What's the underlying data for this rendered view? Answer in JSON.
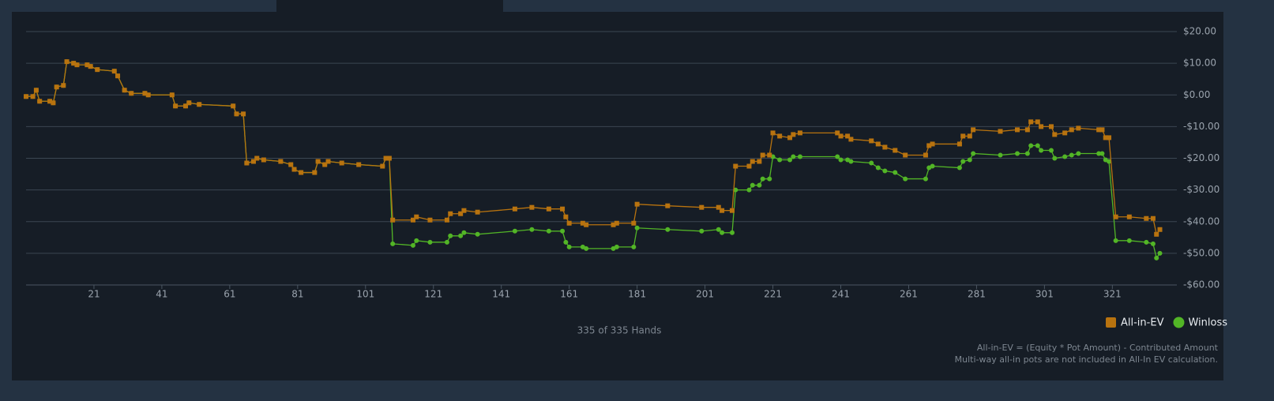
{
  "chart_data": {
    "type": "line",
    "x": [
      1,
      3,
      4,
      5,
      8,
      9,
      10,
      12,
      13,
      15,
      16,
      19,
      20,
      22,
      27,
      28,
      30,
      32,
      36,
      37,
      44,
      45,
      48,
      49,
      52,
      62,
      63,
      65,
      66,
      68,
      69,
      71,
      76,
      79,
      80,
      82,
      86,
      87,
      89,
      90,
      94,
      99,
      106,
      107,
      108,
      109,
      115,
      116,
      120,
      125,
      126,
      129,
      130,
      134,
      145,
      150,
      155,
      159,
      160,
      161,
      165,
      166,
      174,
      175,
      180,
      181,
      190,
      200,
      205,
      206,
      209,
      210,
      214,
      215,
      217,
      218,
      220,
      221,
      223,
      226,
      227,
      229,
      240,
      241,
      243,
      244,
      250,
      252,
      254,
      257,
      260,
      266,
      267,
      268,
      276,
      277,
      279,
      280,
      288,
      293,
      296,
      297,
      299,
      300,
      303,
      304,
      307,
      309,
      311,
      317,
      318,
      319,
      320,
      322,
      326,
      331,
      333,
      334,
      335
    ],
    "series": [
      {
        "name": "All-in-EV",
        "color": "#b8730f",
        "marker": "square",
        "values": [
          -0.5,
          -0.5,
          1.5,
          -2,
          -2,
          -2.5,
          2.5,
          3,
          10.5,
          10,
          9.5,
          9.5,
          9,
          8,
          7.5,
          6,
          1.5,
          0.5,
          0.5,
          0,
          0,
          -3.5,
          -3.5,
          -2.5,
          -3,
          -3.5,
          -6,
          -6,
          -21.5,
          -21,
          -20,
          -20.5,
          -21,
          -22,
          -23.5,
          -24.5,
          -24.5,
          -21,
          -22,
          -21,
          -21.5,
          -22,
          -22.5,
          -20,
          -20,
          -39.5,
          -39.5,
          -38.5,
          -39.5,
          -39.5,
          -37.5,
          -37.5,
          -36.5,
          -37,
          -36,
          -35.5,
          -36,
          -36,
          -38.5,
          -40.5,
          -40.5,
          -41,
          -41,
          -40.5,
          -40.5,
          -34.5,
          -35,
          -35.5,
          -35.5,
          -36.5,
          -36.5,
          -22.5,
          -22.5,
          -21,
          -21,
          -19,
          -19,
          -12,
          -13,
          -13.5,
          -12.5,
          -12,
          -12,
          -13,
          -13,
          -14,
          -14.5,
          -15.5,
          -16.5,
          -17.5,
          -19,
          -19,
          -16,
          -15.5,
          -15.5,
          -13,
          -13,
          -11,
          -11.5,
          -11,
          -11,
          -8.5,
          -8.5,
          -10,
          -10,
          -12.5,
          -12,
          -11,
          -10.5,
          -11,
          -11,
          -13.5,
          -13.5,
          -38.5,
          -38.5,
          -39,
          -39,
          -44,
          -42.5
        ]
      },
      {
        "name": "Winloss",
        "color": "#52b526",
        "marker": "circle",
        "values": [
          -0.5,
          -0.5,
          1.5,
          -2,
          -2,
          -2.5,
          2.5,
          3,
          10.5,
          10,
          9.5,
          9.5,
          9,
          8,
          7.5,
          6,
          1.5,
          0.5,
          0.5,
          0,
          0,
          -3.5,
          -3.5,
          -2.5,
          -3,
          -3.5,
          -6,
          -6,
          -21.5,
          -21,
          -20,
          -20.5,
          -21,
          -22,
          -23.5,
          -24.5,
          -24.5,
          -21,
          -22,
          -21,
          -21.5,
          -22,
          -22.5,
          -20,
          -20,
          -47,
          -47.5,
          -46,
          -46.5,
          -46.5,
          -44.5,
          -44.5,
          -43.5,
          -44,
          -43,
          -42.5,
          -43,
          -43,
          -46.5,
          -48,
          -48,
          -48.5,
          -48.5,
          -48,
          -48,
          -42,
          -42.5,
          -43,
          -42.5,
          -43.5,
          -43.5,
          -30,
          -30,
          -28.5,
          -28.5,
          -26.5,
          -26.5,
          -19.5,
          -20.5,
          -20.5,
          -19.5,
          -19.5,
          -19.5,
          -20.5,
          -20.5,
          -21,
          -21.5,
          -23,
          -24,
          -24.5,
          -26.5,
          -26.5,
          -23,
          -22.5,
          -23,
          -21,
          -20.5,
          -18.5,
          -19,
          -18.5,
          -18.5,
          -16,
          -16,
          -17.5,
          -17.5,
          -20,
          -19.5,
          -19,
          -18.5,
          -18.5,
          -18.5,
          -20.5,
          -21,
          -46,
          -46,
          -46.5,
          -47,
          -51.5,
          -50
        ]
      }
    ],
    "xlim": [
      1,
      340
    ],
    "xticks": [
      21,
      41,
      61,
      81,
      101,
      121,
      141,
      161,
      181,
      201,
      221,
      241,
      261,
      281,
      301,
      321
    ],
    "ylim": [
      -60,
      20
    ],
    "yticks": [
      {
        "value": 20,
        "label": "$20.00"
      },
      {
        "value": 10,
        "label": "$10.00"
      },
      {
        "value": 0,
        "label": "$0.00"
      },
      {
        "value": -10,
        "label": "-$10.00"
      },
      {
        "value": -20,
        "label": "-$20.00"
      },
      {
        "value": -30,
        "label": "-$30.00"
      },
      {
        "value": -40,
        "label": "-$40.00"
      },
      {
        "value": -50,
        "label": "-$50.00"
      },
      {
        "value": -60,
        "label": "-$60.00"
      }
    ],
    "grid": true,
    "legend": "bottom-right",
    "caption": "335 of 335 Hands",
    "notes": [
      "All-in-EV = (Equity * Pot Amount) - Contributed Amount",
      "Multi-way all-in pots are not included in All-In EV calculation."
    ]
  }
}
